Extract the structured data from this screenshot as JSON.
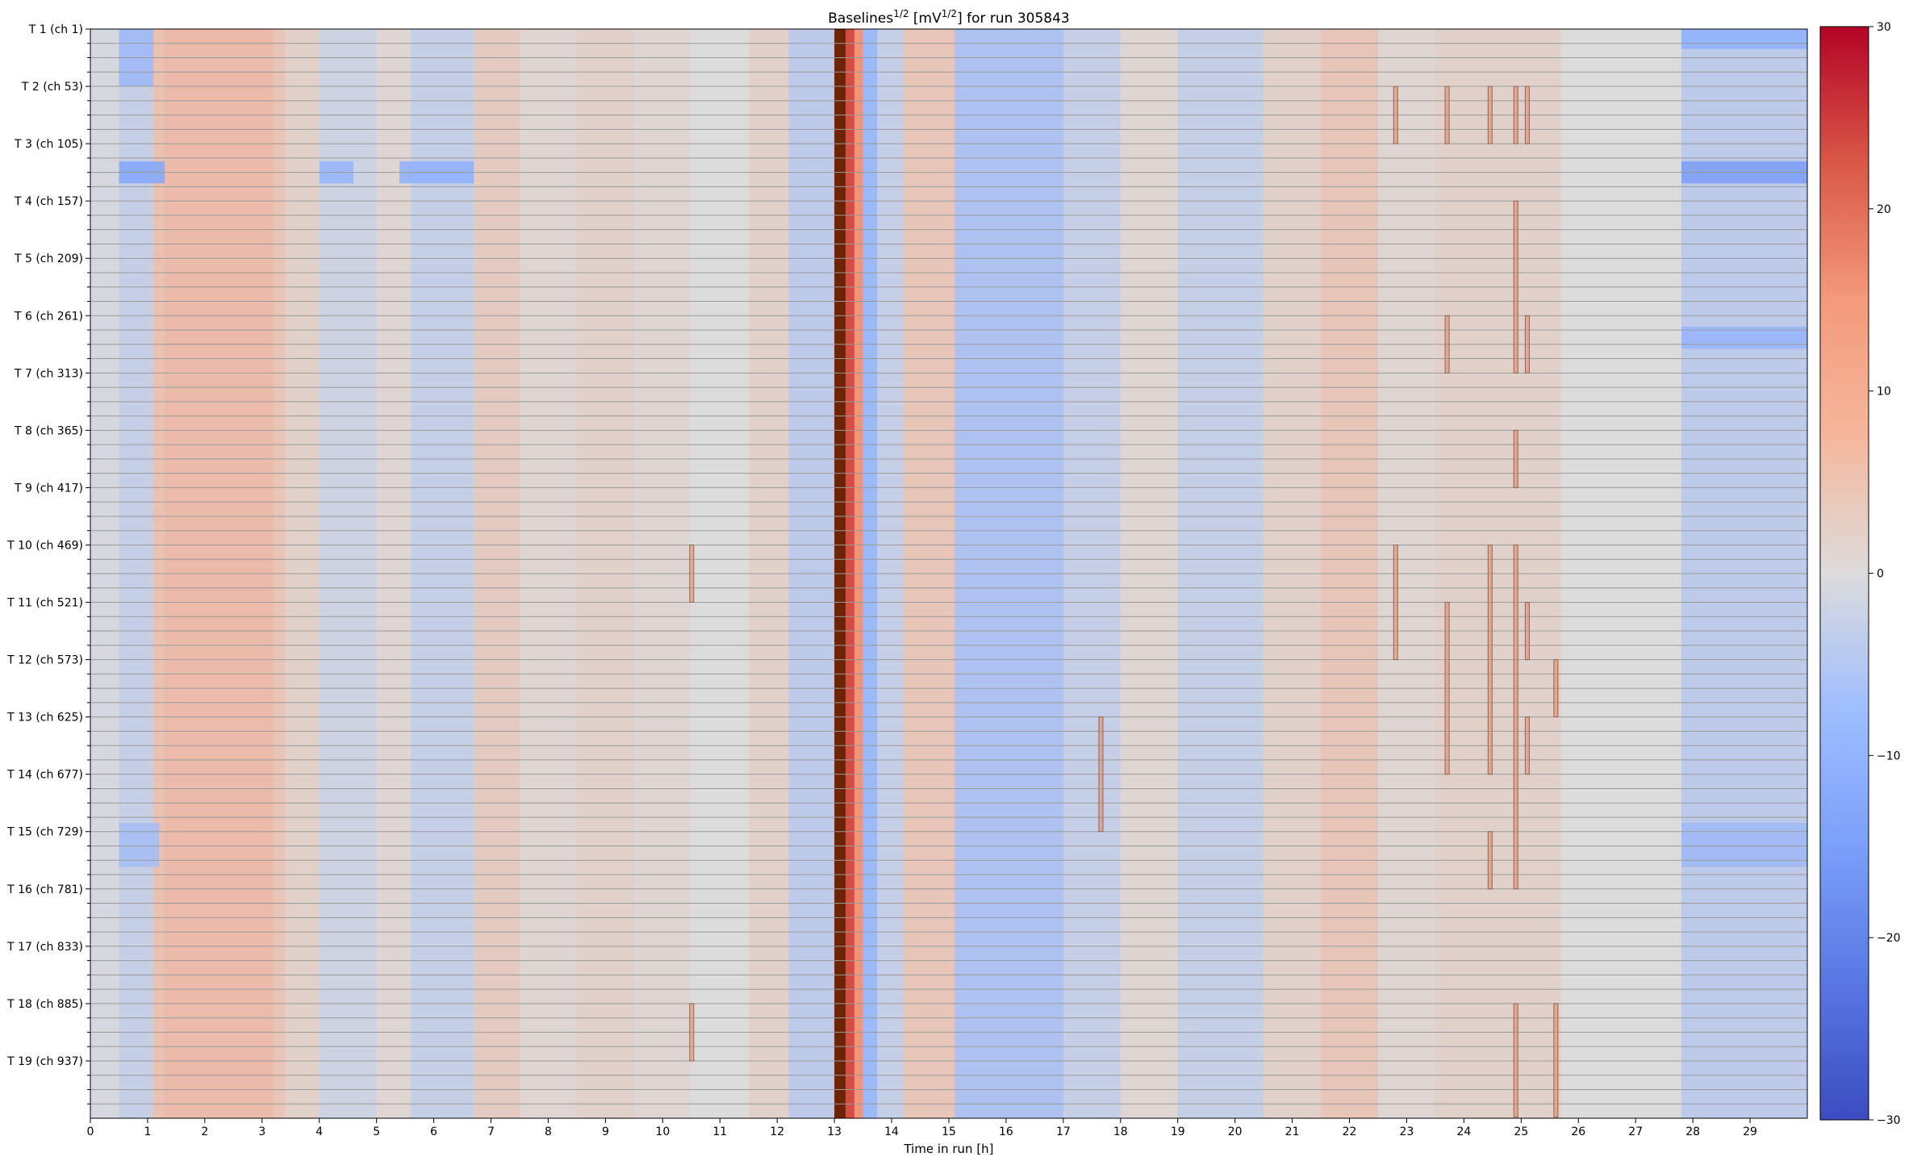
{
  "chart_data": {
    "type": "heatmap",
    "title": "Baselines",
    "title_superscript": "1/2",
    "title_unit_open": " [mV",
    "title_unit_superscript": "1/2",
    "title_unit_close": "] for run 305843",
    "xlabel": "Time in run [h]",
    "xlim": [
      0,
      30
    ],
    "x_ticks": [
      "0",
      "1",
      "2",
      "3",
      "4",
      "5",
      "6",
      "7",
      "8",
      "9",
      "10",
      "11",
      "12",
      "13",
      "14",
      "15",
      "16",
      "17",
      "18",
      "19",
      "20",
      "21",
      "22",
      "23",
      "24",
      "25",
      "26",
      "27",
      "28",
      "29"
    ],
    "y_tick_labels": [
      "T 1 (ch 1)",
      "T 2 (ch 53)",
      "T 3 (ch 105)",
      "T 4 (ch 157)",
      "T 5 (ch 209)",
      "T 6 (ch 261)",
      "T 7 (ch 313)",
      "T 8 (ch 365)",
      "T 9 (ch 417)",
      "T 10 (ch 469)",
      "T 11 (ch 521)",
      "T 12 (ch 573)",
      "T 13 (ch 625)",
      "T 14 (ch 677)",
      "T 15 (ch 729)",
      "T 16 (ch 781)",
      "T 17 (ch 833)",
      "T 18 (ch 885)",
      "T 19 (ch 937)"
    ],
    "channels_total": 988,
    "channels_per_group": 52,
    "colorbar": {
      "colormap": "coolwarm",
      "range": [
        -30,
        30
      ],
      "ticks": [
        {
          "value": 30,
          "label": "30"
        },
        {
          "value": 20,
          "label": "20"
        },
        {
          "value": 10,
          "label": "10"
        },
        {
          "value": 0,
          "label": "0"
        },
        {
          "value": -10,
          "label": "−10"
        },
        {
          "value": -20,
          "label": "−20"
        },
        {
          "value": -30,
          "label": "−30"
        }
      ]
    },
    "column_bands": [
      {
        "x0": 0.0,
        "x1": 0.5,
        "value": -1
      },
      {
        "x0": 0.5,
        "x1": 1.1,
        "value": -3
      },
      {
        "x0": 1.1,
        "x1": 1.3,
        "value": 5
      },
      {
        "x0": 1.3,
        "x1": 3.2,
        "value": 6
      },
      {
        "x0": 3.2,
        "x1": 3.4,
        "value": 4
      },
      {
        "x0": 3.4,
        "x1": 4.0,
        "value": 2
      },
      {
        "x0": 4.0,
        "x1": 5.0,
        "value": -2
      },
      {
        "x0": 5.0,
        "x1": 5.6,
        "value": 1
      },
      {
        "x0": 5.6,
        "x1": 6.7,
        "value": -3
      },
      {
        "x0": 6.7,
        "x1": 7.5,
        "value": 3
      },
      {
        "x0": 7.5,
        "x1": 8.5,
        "value": 1
      },
      {
        "x0": 8.5,
        "x1": 9.5,
        "value": 2
      },
      {
        "x0": 9.5,
        "x1": 10.5,
        "value": 1
      },
      {
        "x0": 10.5,
        "x1": 11.5,
        "value": 0
      },
      {
        "x0": 11.5,
        "x1": 12.2,
        "value": 2
      },
      {
        "x0": 12.2,
        "x1": 13.0,
        "value": -4
      },
      {
        "x0": 13.0,
        "x1": 13.2,
        "value": 40
      },
      {
        "x0": 13.2,
        "x1": 13.35,
        "value": 22
      },
      {
        "x0": 13.35,
        "x1": 13.5,
        "value": 12
      },
      {
        "x0": 13.5,
        "x1": 13.75,
        "value": -8
      },
      {
        "x0": 13.75,
        "x1": 14.2,
        "value": -3
      },
      {
        "x0": 14.2,
        "x1": 15.1,
        "value": 4
      },
      {
        "x0": 15.1,
        "x1": 17.0,
        "value": -6
      },
      {
        "x0": 17.0,
        "x1": 18.0,
        "value": -3
      },
      {
        "x0": 18.0,
        "x1": 19.0,
        "value": 1
      },
      {
        "x0": 19.0,
        "x1": 20.5,
        "value": -3
      },
      {
        "x0": 20.5,
        "x1": 21.5,
        "value": 2
      },
      {
        "x0": 21.5,
        "x1": 22.5,
        "value": 4
      },
      {
        "x0": 22.5,
        "x1": 23.5,
        "value": 1
      },
      {
        "x0": 23.5,
        "x1": 25.7,
        "value": 2
      },
      {
        "x0": 25.7,
        "x1": 27.8,
        "value": 0
      },
      {
        "x0": 27.8,
        "x1": 30.0,
        "value": -4
      }
    ],
    "row_features": [
      {
        "y0": 0,
        "y1": 52,
        "x0": 0.5,
        "x1": 1.1,
        "value": -8
      },
      {
        "y0": 120,
        "y1": 140,
        "x0": 0.5,
        "x1": 1.3,
        "value": -12
      },
      {
        "y0": 120,
        "y1": 140,
        "x0": 4.0,
        "x1": 4.6,
        "value": -9
      },
      {
        "y0": 120,
        "y1": 140,
        "x0": 5.4,
        "x1": 6.7,
        "value": -10
      },
      {
        "y0": 120,
        "y1": 140,
        "x0": 27.8,
        "x1": 30.0,
        "value": -14
      },
      {
        "y0": 0,
        "y1": 18,
        "x0": 27.8,
        "x1": 30.0,
        "value": -10
      },
      {
        "y0": 270,
        "y1": 290,
        "x0": 27.8,
        "x1": 30.0,
        "value": -9
      },
      {
        "y0": 720,
        "y1": 760,
        "x0": 0.5,
        "x1": 1.2,
        "value": -7
      },
      {
        "y0": 720,
        "y1": 760,
        "x0": 27.8,
        "x1": 30.0,
        "value": -8
      }
    ],
    "highlight_boxes": [
      {
        "x": 10.5,
        "y0": 469,
        "y1": 521
      },
      {
        "x": 10.5,
        "y0": 885,
        "y1": 937
      },
      {
        "x": 17.65,
        "y0": 625,
        "y1": 729
      },
      {
        "x": 22.8,
        "y0": 53,
        "y1": 105
      },
      {
        "x": 22.8,
        "y0": 469,
        "y1": 573
      },
      {
        "x": 23.7,
        "y0": 53,
        "y1": 105
      },
      {
        "x": 23.7,
        "y0": 261,
        "y1": 313
      },
      {
        "x": 23.7,
        "y0": 521,
        "y1": 677
      },
      {
        "x": 24.45,
        "y0": 53,
        "y1": 105
      },
      {
        "x": 24.45,
        "y0": 469,
        "y1": 677
      },
      {
        "x": 24.45,
        "y0": 729,
        "y1": 781
      },
      {
        "x": 24.9,
        "y0": 53,
        "y1": 105
      },
      {
        "x": 24.9,
        "y0": 157,
        "y1": 313
      },
      {
        "x": 24.9,
        "y0": 365,
        "y1": 417
      },
      {
        "x": 24.9,
        "y0": 469,
        "y1": 781
      },
      {
        "x": 24.9,
        "y0": 885,
        "y1": 988
      },
      {
        "x": 25.1,
        "y0": 53,
        "y1": 105
      },
      {
        "x": 25.1,
        "y0": 261,
        "y1": 313
      },
      {
        "x": 25.1,
        "y0": 521,
        "y1": 573
      },
      {
        "x": 25.1,
        "y0": 625,
        "y1": 677
      },
      {
        "x": 25.6,
        "y0": 573,
        "y1": 625
      },
      {
        "x": 25.6,
        "y0": 885,
        "y1": 988
      }
    ]
  }
}
